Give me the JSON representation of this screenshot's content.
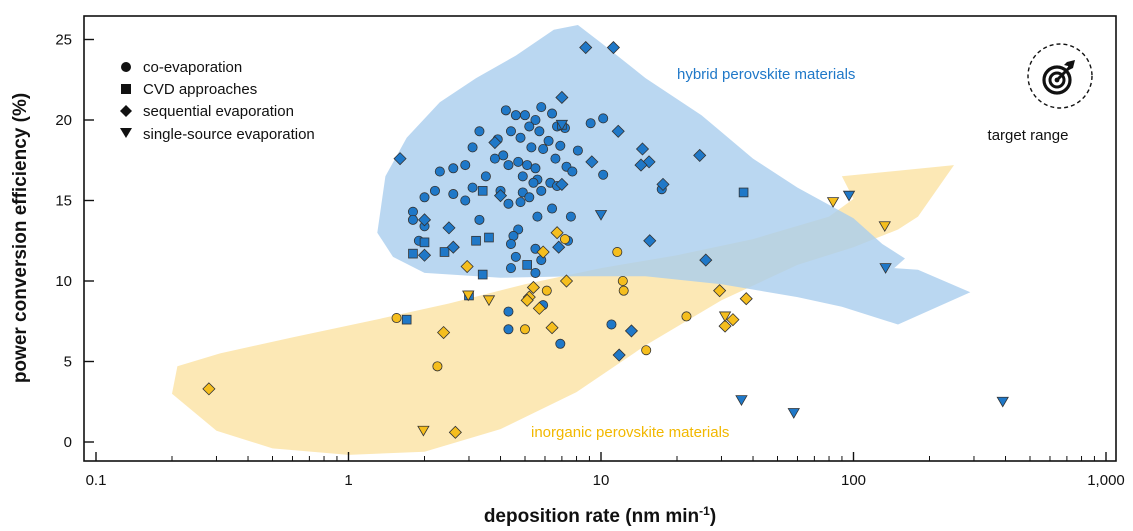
{
  "colors": {
    "hybrid": "#1f78c8",
    "inorganic": "#f5be1e",
    "hybrid_region": "#a9cdee",
    "inorganic_region": "#fbe4a8",
    "edge": "#333333"
  },
  "icons": {
    "target": "target-arrow-icon"
  },
  "chart_data": {
    "type": "scatter",
    "xlabel": "deposition rate (nm min⁻¹)",
    "xlabel_main": "deposition rate (nm min",
    "xlabel_sup": "-1",
    "xlabel_end": ")",
    "ylabel": "power conversion efficiency (%)",
    "xscale": "log",
    "xlim": [
      0.09,
      1000
    ],
    "ylim": [
      -1.2,
      26.5
    ],
    "xticks": [
      0.1,
      1,
      10,
      100,
      1000
    ],
    "xtick_labels": [
      "0.1",
      "1",
      "10",
      "100",
      "1,000"
    ],
    "yticks": [
      0,
      5,
      10,
      15,
      20,
      25
    ],
    "ytick_labels": [
      "0",
      "5",
      "10",
      "15",
      "20",
      "25"
    ],
    "legend_position": "top-left",
    "legend": [
      {
        "marker": "circle",
        "label": "co-evaporation"
      },
      {
        "marker": "square",
        "label": "CVD approaches"
      },
      {
        "marker": "diamond",
        "label": "sequential evaporation"
      },
      {
        "marker": "triangle-down",
        "label": "single-source evaporation"
      }
    ],
    "annotations": {
      "hybrid_region": "hybrid perovskite materials",
      "inorganic_region": "inorganic perovskite materials",
      "target": "target range"
    },
    "series": [
      {
        "group": "hybrid",
        "method": "co-evaporation",
        "marker": "circle",
        "points": [
          [
            4.2,
            20.6
          ],
          [
            5.0,
            20.3
          ],
          [
            5.8,
            20.8
          ],
          [
            6.4,
            20.4
          ],
          [
            4.6,
            20.3
          ],
          [
            5.5,
            20.0
          ],
          [
            5.2,
            19.6
          ],
          [
            4.4,
            19.3
          ],
          [
            6.7,
            19.6
          ],
          [
            7.2,
            19.5
          ],
          [
            9.1,
            19.8
          ],
          [
            10.2,
            20.1
          ],
          [
            3.3,
            19.3
          ],
          [
            3.9,
            18.8
          ],
          [
            4.8,
            18.9
          ],
          [
            5.7,
            19.3
          ],
          [
            6.2,
            18.7
          ],
          [
            6.9,
            18.4
          ],
          [
            8.1,
            18.1
          ],
          [
            5.3,
            18.3
          ],
          [
            3.1,
            18.3
          ],
          [
            4.1,
            17.8
          ],
          [
            5.9,
            18.2
          ],
          [
            2.9,
            17.2
          ],
          [
            3.8,
            17.6
          ],
          [
            4.3,
            17.2
          ],
          [
            4.7,
            17.4
          ],
          [
            5.1,
            17.2
          ],
          [
            6.6,
            17.6
          ],
          [
            7.3,
            17.1
          ],
          [
            5.5,
            17.0
          ],
          [
            2.6,
            17.0
          ],
          [
            2.3,
            16.8
          ],
          [
            3.5,
            16.5
          ],
          [
            4.9,
            16.5
          ],
          [
            5.6,
            16.3
          ],
          [
            6.3,
            16.1
          ],
          [
            7.7,
            16.8
          ],
          [
            10.2,
            16.6
          ],
          [
            2.2,
            15.6
          ],
          [
            2.6,
            15.4
          ],
          [
            3.1,
            15.8
          ],
          [
            4.0,
            15.6
          ],
          [
            4.9,
            15.5
          ],
          [
            5.4,
            16.1
          ],
          [
            5.8,
            15.6
          ],
          [
            6.7,
            15.9
          ],
          [
            17.4,
            15.7
          ],
          [
            2.0,
            15.2
          ],
          [
            2.9,
            15.0
          ],
          [
            4.3,
            14.8
          ],
          [
            4.8,
            14.9
          ],
          [
            5.2,
            15.2
          ],
          [
            6.4,
            14.5
          ],
          [
            1.8,
            14.3
          ],
          [
            1.8,
            13.8
          ],
          [
            3.3,
            13.8
          ],
          [
            5.6,
            14.0
          ],
          [
            7.6,
            14.0
          ],
          [
            2.0,
            13.4
          ],
          [
            4.7,
            13.2
          ],
          [
            4.5,
            12.8
          ],
          [
            1.9,
            12.5
          ],
          [
            4.4,
            12.3
          ],
          [
            5.5,
            12.0
          ],
          [
            7.4,
            12.5
          ],
          [
            4.6,
            11.5
          ],
          [
            5.8,
            11.3
          ],
          [
            4.4,
            10.8
          ],
          [
            5.5,
            10.5
          ],
          [
            5.9,
            8.5
          ],
          [
            4.3,
            8.1
          ],
          [
            4.3,
            7.0
          ],
          [
            11.0,
            7.3
          ],
          [
            6.9,
            6.1
          ]
        ]
      },
      {
        "group": "hybrid",
        "method": "CVD approaches",
        "marker": "square",
        "points": [
          [
            1.7,
            7.6
          ],
          [
            1.8,
            11.7
          ],
          [
            2.4,
            11.8
          ],
          [
            2.0,
            12.4
          ],
          [
            3.2,
            12.5
          ],
          [
            3.6,
            12.7
          ],
          [
            5.1,
            11.0
          ],
          [
            3.4,
            10.4
          ],
          [
            3.0,
            9.1
          ],
          [
            3.4,
            15.6
          ],
          [
            36.7,
            15.5
          ],
          [
            7.0,
            19.7
          ]
        ]
      },
      {
        "group": "hybrid",
        "method": "sequential evaporation",
        "marker": "diamond",
        "points": [
          [
            8.7,
            24.5
          ],
          [
            11.2,
            24.5
          ],
          [
            7.0,
            21.4
          ],
          [
            11.7,
            19.3
          ],
          [
            1.6,
            17.6
          ],
          [
            14.6,
            18.2
          ],
          [
            9.2,
            17.4
          ],
          [
            15.5,
            17.4
          ],
          [
            14.4,
            17.2
          ],
          [
            24.6,
            17.8
          ],
          [
            7.0,
            16.0
          ],
          [
            17.6,
            16.0
          ],
          [
            4.0,
            15.3
          ],
          [
            3.8,
            18.6
          ],
          [
            2.0,
            13.8
          ],
          [
            2.5,
            13.3
          ],
          [
            15.6,
            12.5
          ],
          [
            2.6,
            12.1
          ],
          [
            2.0,
            11.6
          ],
          [
            6.8,
            12.1
          ],
          [
            26.0,
            11.3
          ],
          [
            13.2,
            6.9
          ],
          [
            11.8,
            5.4
          ]
        ]
      },
      {
        "group": "hybrid",
        "method": "single-source evaporation",
        "marker": "triangle-down",
        "points": [
          [
            10.0,
            14.1
          ],
          [
            96.0,
            15.3
          ],
          [
            134.0,
            10.8
          ],
          [
            36.0,
            2.6
          ],
          [
            58.0,
            1.8
          ],
          [
            390.0,
            2.5
          ],
          [
            7.0,
            19.7
          ]
        ]
      },
      {
        "group": "inorganic",
        "method": "co-evaporation",
        "marker": "circle",
        "points": [
          [
            1.55,
            7.7
          ],
          [
            2.25,
            4.7
          ],
          [
            11.6,
            11.8
          ],
          [
            12.2,
            10.0
          ],
          [
            12.3,
            9.4
          ],
          [
            6.1,
            9.4
          ],
          [
            5.0,
            7.0
          ],
          [
            21.8,
            7.8
          ],
          [
            15.1,
            5.7
          ],
          [
            7.2,
            12.6
          ]
        ]
      },
      {
        "group": "inorganic",
        "method": "sequential evaporation",
        "marker": "diamond",
        "points": [
          [
            0.28,
            3.3
          ],
          [
            2.38,
            6.8
          ],
          [
            2.95,
            10.9
          ],
          [
            2.65,
            0.6
          ],
          [
            5.4,
            9.6
          ],
          [
            5.2,
            9.0
          ],
          [
            5.1,
            8.8
          ],
          [
            5.7,
            8.3
          ],
          [
            6.4,
            7.1
          ],
          [
            6.7,
            13.0
          ],
          [
            5.9,
            11.8
          ],
          [
            7.3,
            10.0
          ],
          [
            29.5,
            9.4
          ],
          [
            31.0,
            7.2
          ],
          [
            33.3,
            7.6
          ],
          [
            37.6,
            8.9
          ]
        ]
      },
      {
        "group": "inorganic",
        "method": "single-source evaporation",
        "marker": "triangle-down",
        "points": [
          [
            1.98,
            0.7
          ],
          [
            2.98,
            9.1
          ],
          [
            3.6,
            8.8
          ],
          [
            31.0,
            7.8
          ],
          [
            83.0,
            14.9
          ],
          [
            133.0,
            13.4
          ]
        ]
      }
    ]
  }
}
